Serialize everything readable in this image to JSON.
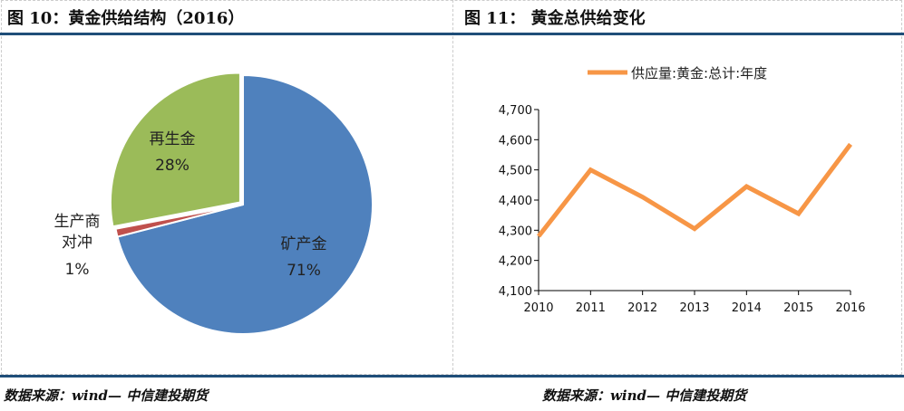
{
  "left": {
    "title": "图 10：黄金供给结构（2016）",
    "source": "数据来源：wind— 中信建投期货"
  },
  "right": {
    "title": "图 11：  黄金总供给变化",
    "source": "数据来源：wind— 中信建投期货"
  },
  "chart_data": [
    {
      "type": "pie",
      "slices": [
        {
          "label": "矿产金",
          "value": 71,
          "pct": "71%",
          "color": "#4f81bd"
        },
        {
          "label": "生产商对冲",
          "value": 1,
          "pct": "1%",
          "color": "#c0504d"
        },
        {
          "label": "再生金",
          "value": 28,
          "pct": "28%",
          "color": "#9bbb59"
        }
      ]
    },
    {
      "type": "line",
      "legend": "供应量:黄金:总计:年度",
      "legend_position": "top",
      "color": "#f79646",
      "categories": [
        "2010",
        "2011",
        "2012",
        "2013",
        "2014",
        "2015",
        "2016"
      ],
      "values": [
        4280,
        4500,
        4410,
        4305,
        4445,
        4355,
        4585
      ],
      "ylim": [
        4100,
        4700
      ],
      "yticks": [
        "4,100",
        "4,200",
        "4,300",
        "4,400",
        "4,500",
        "4,600",
        "4,700"
      ],
      "grid": false
    }
  ]
}
